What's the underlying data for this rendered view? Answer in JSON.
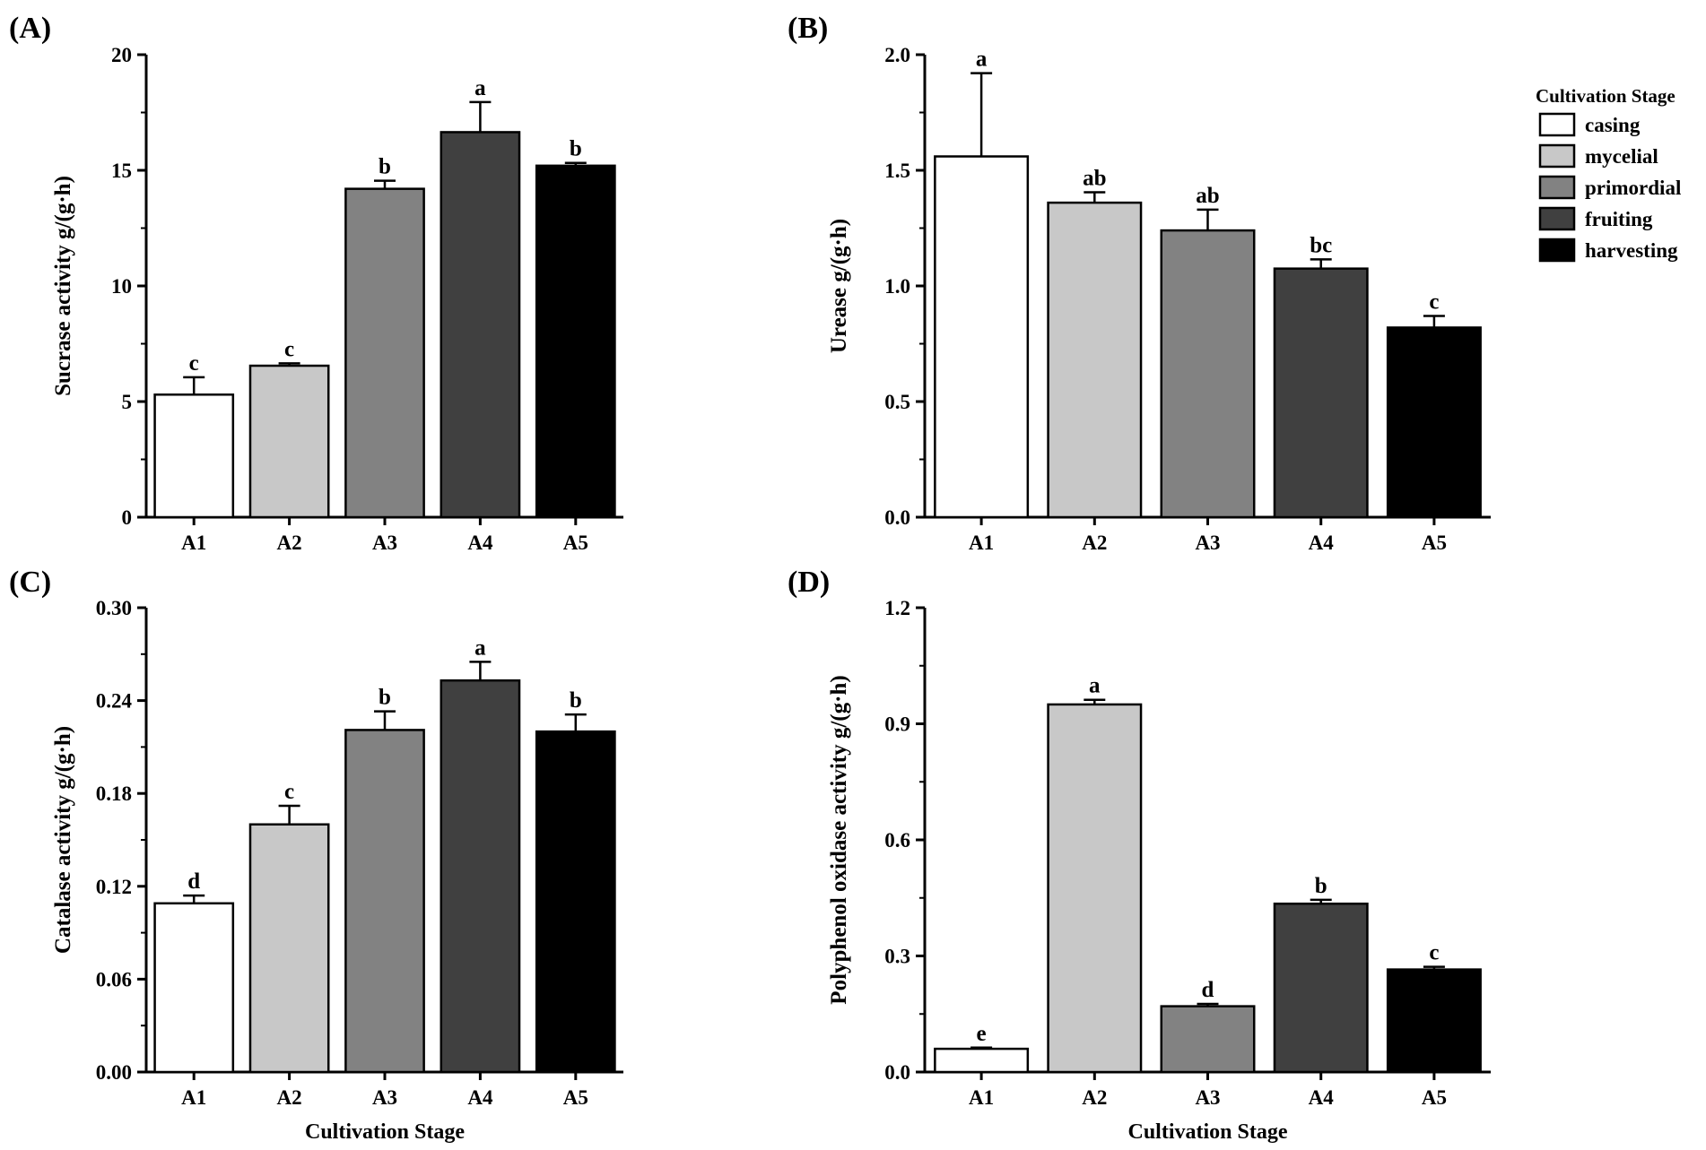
{
  "xlabel": "Cultivation Stage",
  "categories": [
    "A1",
    "A2",
    "A3",
    "A4",
    "A5"
  ],
  "legend": {
    "title": "Cultivation Stage",
    "items": [
      {
        "label": "casing",
        "color": "#ffffff"
      },
      {
        "label": "mycelial",
        "color": "#c8c8c8"
      },
      {
        "label": "primordial",
        "color": "#828282"
      },
      {
        "label": "fruiting",
        "color": "#404040"
      },
      {
        "label": "harvesting",
        "color": "#000000"
      }
    ]
  },
  "chart_data": [
    {
      "type": "bar",
      "panel": "(A)",
      "title": "",
      "ylabel": "Sucrase activity  g/(g·h)",
      "xlabel": "",
      "categories": [
        "A1",
        "A2",
        "A3",
        "A4",
        "A5"
      ],
      "values": [
        5.3,
        6.55,
        14.2,
        16.65,
        15.2
      ],
      "errors": [
        0.75,
        0.1,
        0.35,
        1.3,
        0.12
      ],
      "letters": [
        "c",
        "c",
        "b",
        "a",
        "b"
      ],
      "ylim": [
        0,
        20
      ],
      "yticks": [
        "0",
        "5",
        "10",
        "15",
        "20"
      ]
    },
    {
      "type": "bar",
      "panel": "(B)",
      "title": "",
      "ylabel": "Urease g/(g·h)",
      "xlabel": "",
      "categories": [
        "A1",
        "A2",
        "A3",
        "A4",
        "A5"
      ],
      "values": [
        1.56,
        1.36,
        1.24,
        1.075,
        0.82
      ],
      "errors": [
        0.36,
        0.045,
        0.09,
        0.04,
        0.05
      ],
      "letters": [
        "a",
        "ab",
        "ab",
        "bc",
        "c"
      ],
      "ylim": [
        0,
        2.0
      ],
      "yticks": [
        "0.0",
        "0.5",
        "1.0",
        "1.5",
        "2.0"
      ]
    },
    {
      "type": "bar",
      "panel": "(C)",
      "title": "",
      "ylabel": "Catalase activity g/(g·h)",
      "xlabel": "Cultivation Stage",
      "categories": [
        "A1",
        "A2",
        "A3",
        "A4",
        "A5"
      ],
      "values": [
        0.109,
        0.16,
        0.221,
        0.253,
        0.22
      ],
      "errors": [
        0.005,
        0.012,
        0.012,
        0.012,
        0.011
      ],
      "letters": [
        "d",
        "c",
        "b",
        "a",
        "b"
      ],
      "ylim": [
        0,
        0.3
      ],
      "yticks": [
        "0.00",
        "0.06",
        "0.12",
        "0.18",
        "0.24",
        "0.30"
      ]
    },
    {
      "type": "bar",
      "panel": "(D)",
      "title": "",
      "ylabel": "Polyphenol oxidase activity  g/(g·h)",
      "xlabel": "Cultivation Stage",
      "categories": [
        "A1",
        "A2",
        "A3",
        "A4",
        "A5"
      ],
      "values": [
        0.06,
        0.95,
        0.17,
        0.435,
        0.265
      ],
      "errors": [
        0.003,
        0.012,
        0.006,
        0.01,
        0.007
      ],
      "letters": [
        "e",
        "a",
        "d",
        "b",
        "c"
      ],
      "ylim": [
        0,
        1.2
      ],
      "yticks": [
        "0.0",
        "0.3",
        "0.6",
        "0.9",
        "1.2"
      ]
    }
  ]
}
